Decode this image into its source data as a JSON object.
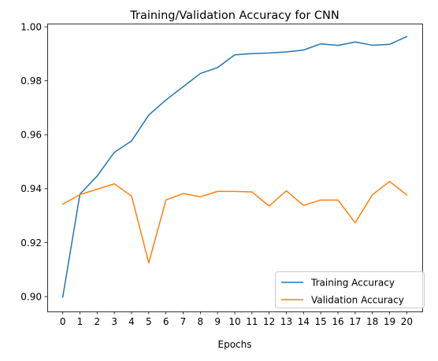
{
  "chart_data": {
    "type": "line",
    "title": "Training/Validation Accuracy for CNN",
    "xlabel": "Epochs",
    "ylabel": "",
    "x": [
      0,
      1,
      2,
      3,
      4,
      5,
      6,
      7,
      8,
      9,
      10,
      11,
      12,
      13,
      14,
      15,
      16,
      17,
      18,
      19,
      20
    ],
    "xlim": [
      -0.9,
      20.9
    ],
    "ylim": [
      0.8945,
      1.0012
    ],
    "x_ticks": [
      "0",
      "1",
      "2",
      "3",
      "4",
      "5",
      "6",
      "7",
      "8",
      "9",
      "10",
      "11",
      "12",
      "13",
      "14",
      "15",
      "16",
      "17",
      "18",
      "19",
      "20"
    ],
    "y_ticks": [
      0.9,
      0.92,
      0.94,
      0.96,
      0.98,
      1.0
    ],
    "y_tick_labels": [
      "0.90",
      "0.92",
      "0.94",
      "0.96",
      "0.98",
      "1.00"
    ],
    "grid": false,
    "legend_position": "lower-right",
    "series": [
      {
        "name": "Training Accuracy",
        "color": "#1f77b4",
        "values": [
          0.8998,
          0.938,
          0.9447,
          0.9535,
          0.9577,
          0.9673,
          0.9729,
          0.9778,
          0.9827,
          0.9849,
          0.9896,
          0.9901,
          0.9903,
          0.9907,
          0.9914,
          0.9937,
          0.9931,
          0.9944,
          0.9932,
          0.9935,
          0.9964
        ]
      },
      {
        "name": "Validation Accuracy",
        "color": "#ff7f0e",
        "values": [
          0.9343,
          0.9378,
          0.9398,
          0.9418,
          0.9373,
          0.9125,
          0.9358,
          0.9382,
          0.937,
          0.939,
          0.939,
          0.9388,
          0.9336,
          0.9392,
          0.9338,
          0.9358,
          0.9358,
          0.9274,
          0.9377,
          0.9427,
          0.9377
        ]
      }
    ]
  }
}
